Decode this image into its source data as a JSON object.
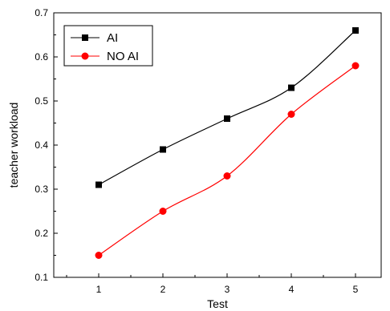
{
  "chart_data": {
    "type": "line",
    "xlabel": "Test",
    "ylabel": "teacher workload",
    "x": [
      1,
      2,
      3,
      4,
      5
    ],
    "x_tick_labels": [
      "1",
      "2",
      "3",
      "4",
      "5"
    ],
    "xlim": [
      0.3,
      5.4
    ],
    "y_ticks": [
      0.1,
      0.2,
      0.3,
      0.4,
      0.5,
      0.6,
      0.7
    ],
    "y_tick_labels": [
      "0.1",
      "0.2",
      "0.3",
      "0.4",
      "0.5",
      "0.6",
      "0.7"
    ],
    "ylim": [
      0.1,
      0.7
    ],
    "grid": false,
    "legend_position": "top-left",
    "series": [
      {
        "name": "AI",
        "values": [
          0.31,
          0.39,
          0.46,
          0.53,
          0.66
        ],
        "color": "#000000",
        "marker": "square"
      },
      {
        "name": "NO AI",
        "values": [
          0.15,
          0.25,
          0.33,
          0.47,
          0.58
        ],
        "color": "#ff0000",
        "marker": "circle"
      }
    ]
  }
}
